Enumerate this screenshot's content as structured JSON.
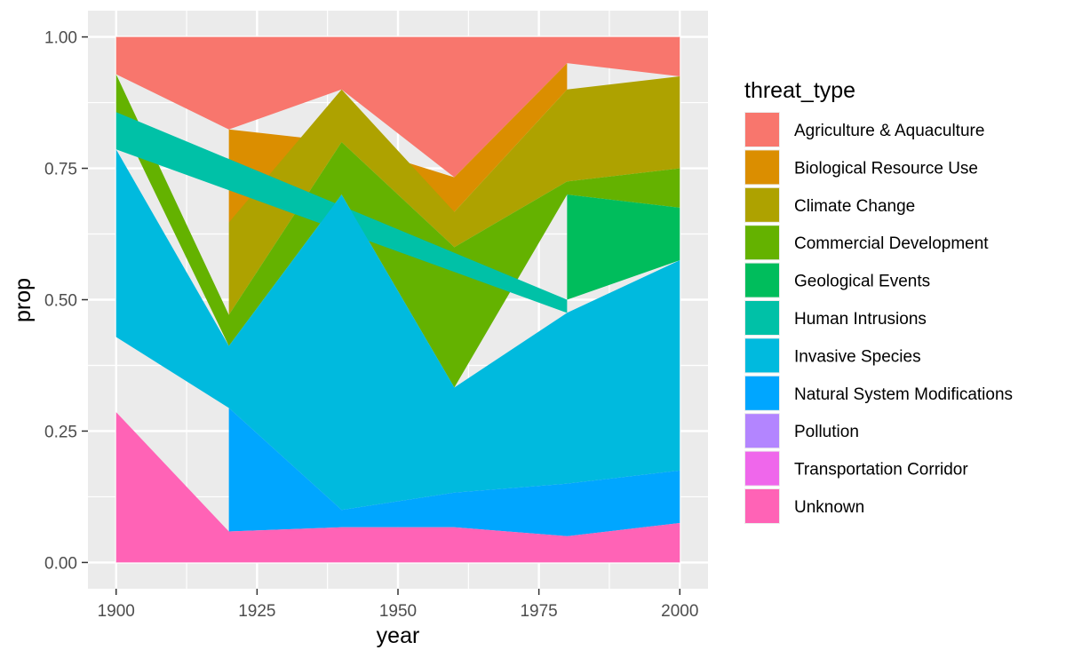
{
  "chart_data": {
    "type": "area",
    "xlabel": "year",
    "ylabel": "prop",
    "xlim": [
      1895,
      2005
    ],
    "ylim": [
      -0.05,
      1.05
    ],
    "x_ticks": [
      1900,
      1925,
      1950,
      1975,
      2000
    ],
    "x_tick_labels": [
      "1900",
      "1925",
      "1950",
      "1975",
      "2000"
    ],
    "y_ticks": [
      0,
      0.25,
      0.5,
      0.75,
      1
    ],
    "y_tick_labels": [
      "0.00",
      "0.25",
      "0.50",
      "0.75",
      "1.00"
    ],
    "grid": true,
    "legend_position": "right",
    "legend_title": "threat_type",
    "series": [
      {
        "name": "Agriculture & Aquaculture",
        "color": "#F8766D",
        "points": [
          [
            1900,
            0.929,
            1.0
          ],
          [
            1920,
            0.824,
            1.0
          ],
          [
            1940,
            0.9,
            1.0
          ],
          [
            1960,
            0.733,
            1.0
          ],
          [
            1980,
            0.95,
            1.0
          ],
          [
            2000,
            0.925,
            1.0
          ]
        ]
      },
      {
        "name": "Biological Resource Use",
        "color": "#DB8E00",
        "points": [
          [
            1920,
            0.647,
            0.824
          ],
          [
            1940,
            0.8,
            0.8
          ],
          [
            1960,
            0.667,
            0.733
          ],
          [
            1980,
            0.9,
            0.95
          ]
        ]
      },
      {
        "name": "Climate Change",
        "color": "#AEA200",
        "points": [
          [
            1920,
            0.471,
            0.647
          ],
          [
            1940,
            0.8,
            0.9
          ],
          [
            1960,
            0.6,
            0.667
          ],
          [
            1980,
            0.725,
            0.9
          ],
          [
            2000,
            0.75,
            0.925
          ]
        ]
      },
      {
        "name": "Commercial Development",
        "color": "#64B200",
        "points": [
          [
            1900,
            0.857,
            0.929
          ],
          [
            1920,
            0.412,
            0.471
          ],
          [
            1940,
            0.7,
            0.8
          ],
          [
            1960,
            0.333,
            0.6
          ],
          [
            1980,
            0.7,
            0.725
          ],
          [
            2000,
            0.675,
            0.75
          ]
        ]
      },
      {
        "name": "Geological Events",
        "color": "#00BD5C",
        "points": [
          [
            1980,
            0.5,
            0.7
          ],
          [
            2000,
            0.575,
            0.675
          ]
        ]
      },
      {
        "name": "Human Intrusions",
        "color": "#00C1A7",
        "points": [
          [
            1900,
            0.786,
            0.857
          ],
          [
            1980,
            0.475,
            0.5
          ]
        ]
      },
      {
        "name": "Invasive Species",
        "color": "#00BADE",
        "points": [
          [
            1900,
            0.429,
            0.786
          ],
          [
            1920,
            0.294,
            0.412
          ],
          [
            1940,
            0.1,
            0.7
          ],
          [
            1960,
            0.133,
            0.333
          ],
          [
            1980,
            0.15,
            0.475
          ],
          [
            2000,
            0.175,
            0.575
          ]
        ]
      },
      {
        "name": "Natural System Modifications",
        "color": "#00A6FF",
        "points": [
          [
            1920,
            0.059,
            0.294
          ],
          [
            1940,
            0.067,
            0.1
          ],
          [
            1960,
            0.067,
            0.133
          ],
          [
            1980,
            0.05,
            0.15
          ],
          [
            2000,
            0.075,
            0.175
          ]
        ]
      },
      {
        "name": "Pollution",
        "color": "#B385FF",
        "points": []
      },
      {
        "name": "Transportation Corridor",
        "color": "#EF67EB",
        "points": []
      },
      {
        "name": "Unknown",
        "color": "#FF63B6",
        "points": [
          [
            1900,
            0.0,
            0.286
          ],
          [
            1920,
            0.0,
            0.059
          ],
          [
            1940,
            0.0,
            0.067
          ],
          [
            1960,
            0.0,
            0.067
          ],
          [
            1980,
            0.0,
            0.05
          ],
          [
            2000,
            0.0,
            0.075
          ]
        ]
      }
    ]
  }
}
